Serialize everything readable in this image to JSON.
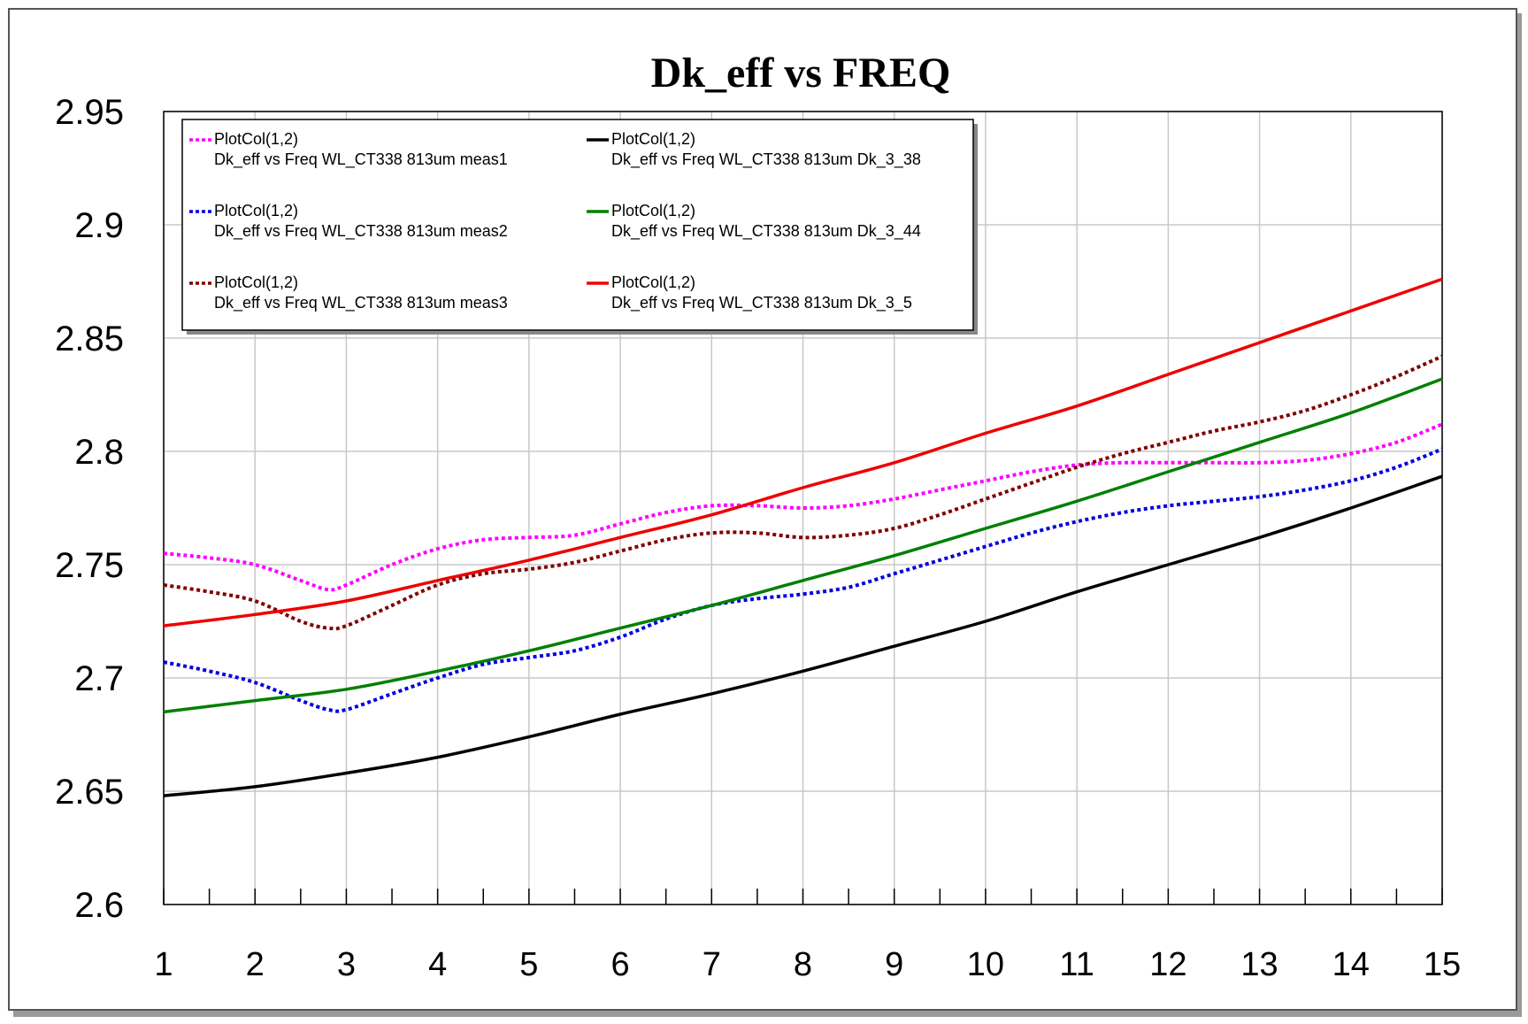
{
  "chart_data": {
    "type": "line",
    "title": "Dk_eff vs FREQ",
    "xlabel": "",
    "ylabel": "",
    "xlim": [
      1,
      15
    ],
    "ylim": [
      2.6,
      2.95
    ],
    "x_ticks": [
      "1",
      "2",
      "3",
      "4",
      "5",
      "6",
      "7",
      "8",
      "9",
      "10",
      "11",
      "12",
      "13",
      "14",
      "15"
    ],
    "y_ticks": [
      "2.6",
      "2.65",
      "2.7",
      "2.75",
      "2.8",
      "2.85",
      "2.9",
      "2.95"
    ],
    "grid": true,
    "legend_position": "top-left",
    "series": [
      {
        "name": "PlotCol(1,2)",
        "description": "Dk_eff vs Freq WL_CT338 813um meas1",
        "color": "#ff00ff",
        "style": "dotted",
        "points": [
          [
            1,
            2.755
          ],
          [
            1.5,
            2.753
          ],
          [
            2,
            2.75
          ],
          [
            2.5,
            2.743
          ],
          [
            2.8,
            2.739
          ],
          [
            3,
            2.741
          ],
          [
            3.5,
            2.75
          ],
          [
            4,
            2.757
          ],
          [
            4.5,
            2.761
          ],
          [
            5,
            2.762
          ],
          [
            5.5,
            2.763
          ],
          [
            6,
            2.768
          ],
          [
            6.5,
            2.773
          ],
          [
            7,
            2.776
          ],
          [
            7.5,
            2.776
          ],
          [
            8,
            2.775
          ],
          [
            8.5,
            2.776
          ],
          [
            9,
            2.779
          ],
          [
            9.5,
            2.783
          ],
          [
            10,
            2.787
          ],
          [
            10.5,
            2.791
          ],
          [
            11,
            2.794
          ],
          [
            11.5,
            2.795
          ],
          [
            12,
            2.795
          ],
          [
            12.5,
            2.795
          ],
          [
            13,
            2.795
          ],
          [
            13.5,
            2.796
          ],
          [
            14,
            2.799
          ],
          [
            14.5,
            2.804
          ],
          [
            15,
            2.812
          ]
        ]
      },
      {
        "name": "PlotCol(1,2)",
        "description": "Dk_eff vs Freq WL_CT338 813um meas2",
        "color": "#0000dd",
        "style": "dotted",
        "points": [
          [
            1,
            2.707
          ],
          [
            1.5,
            2.703
          ],
          [
            2,
            2.698
          ],
          [
            2.5,
            2.69
          ],
          [
            2.8,
            2.686
          ],
          [
            3,
            2.686
          ],
          [
            3.5,
            2.693
          ],
          [
            4,
            2.7
          ],
          [
            4.5,
            2.706
          ],
          [
            5,
            2.709
          ],
          [
            5.5,
            2.712
          ],
          [
            6,
            2.718
          ],
          [
            6.5,
            2.726
          ],
          [
            7,
            2.732
          ],
          [
            7.5,
            2.735
          ],
          [
            8,
            2.737
          ],
          [
            8.5,
            2.74
          ],
          [
            9,
            2.746
          ],
          [
            9.5,
            2.752
          ],
          [
            10,
            2.758
          ],
          [
            10.5,
            2.764
          ],
          [
            11,
            2.769
          ],
          [
            11.5,
            2.773
          ],
          [
            12,
            2.776
          ],
          [
            12.5,
            2.778
          ],
          [
            13,
            2.78
          ],
          [
            13.5,
            2.783
          ],
          [
            14,
            2.787
          ],
          [
            14.5,
            2.793
          ],
          [
            15,
            2.801
          ]
        ]
      },
      {
        "name": "PlotCol(1,2)",
        "description": "Dk_eff vs Freq WL_CT338 813um meas3",
        "color": "#800000",
        "style": "dotted",
        "points": [
          [
            1,
            2.741
          ],
          [
            1.5,
            2.738
          ],
          [
            2,
            2.734
          ],
          [
            2.5,
            2.725
          ],
          [
            2.8,
            2.722
          ],
          [
            3,
            2.723
          ],
          [
            3.5,
            2.732
          ],
          [
            4,
            2.741
          ],
          [
            4.5,
            2.746
          ],
          [
            5,
            2.748
          ],
          [
            5.5,
            2.751
          ],
          [
            6,
            2.756
          ],
          [
            6.5,
            2.761
          ],
          [
            7,
            2.764
          ],
          [
            7.5,
            2.764
          ],
          [
            8,
            2.762
          ],
          [
            8.5,
            2.763
          ],
          [
            9,
            2.766
          ],
          [
            9.5,
            2.772
          ],
          [
            10,
            2.779
          ],
          [
            10.5,
            2.786
          ],
          [
            11,
            2.793
          ],
          [
            11.5,
            2.799
          ],
          [
            12,
            2.804
          ],
          [
            12.5,
            2.809
          ],
          [
            13,
            2.813
          ],
          [
            13.5,
            2.818
          ],
          [
            14,
            2.825
          ],
          [
            14.5,
            2.833
          ],
          [
            15,
            2.842
          ]
        ]
      },
      {
        "name": "PlotCol(1,2)",
        "description": "Dk_eff vs Freq WL_CT338 813um Dk_3_38",
        "color": "#000000",
        "style": "solid",
        "points": [
          [
            1,
            2.648
          ],
          [
            2,
            2.652
          ],
          [
            3,
            2.658
          ],
          [
            4,
            2.665
          ],
          [
            5,
            2.674
          ],
          [
            6,
            2.684
          ],
          [
            7,
            2.693
          ],
          [
            8,
            2.703
          ],
          [
            9,
            2.714
          ],
          [
            10,
            2.725
          ],
          [
            11,
            2.738
          ],
          [
            12,
            2.75
          ],
          [
            13,
            2.762
          ],
          [
            14,
            2.775
          ],
          [
            15,
            2.789
          ]
        ]
      },
      {
        "name": "PlotCol(1,2)",
        "description": "Dk_eff vs Freq WL_CT338 813um Dk_3_44",
        "color": "#008000",
        "style": "solid",
        "points": [
          [
            1,
            2.685
          ],
          [
            2,
            2.69
          ],
          [
            3,
            2.695
          ],
          [
            4,
            2.703
          ],
          [
            5,
            2.712
          ],
          [
            6,
            2.722
          ],
          [
            7,
            2.732
          ],
          [
            8,
            2.743
          ],
          [
            9,
            2.754
          ],
          [
            10,
            2.766
          ],
          [
            11,
            2.778
          ],
          [
            12,
            2.791
          ],
          [
            13,
            2.804
          ],
          [
            14,
            2.817
          ],
          [
            15,
            2.832
          ]
        ]
      },
      {
        "name": "PlotCol(1,2)",
        "description": "Dk_eff vs Freq WL_CT338 813um Dk_3_5",
        "color": "#ee0000",
        "style": "solid",
        "points": [
          [
            1,
            2.723
          ],
          [
            2,
            2.728
          ],
          [
            3,
            2.734
          ],
          [
            4,
            2.743
          ],
          [
            5,
            2.752
          ],
          [
            6,
            2.762
          ],
          [
            7,
            2.772
          ],
          [
            8,
            2.784
          ],
          [
            9,
            2.795
          ],
          [
            10,
            2.808
          ],
          [
            11,
            2.82
          ],
          [
            12,
            2.834
          ],
          [
            13,
            2.848
          ],
          [
            14,
            2.862
          ],
          [
            15,
            2.876
          ]
        ]
      }
    ]
  }
}
